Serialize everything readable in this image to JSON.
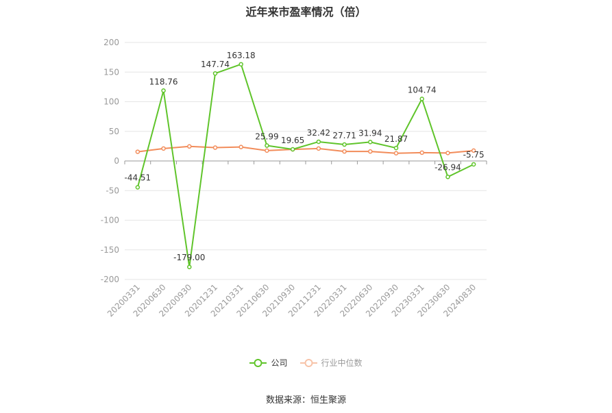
{
  "chart_data": {
    "type": "line",
    "title": "近年来市盈率情况（倍）",
    "categories": [
      "20200331",
      "20200630",
      "20200930",
      "20201231",
      "20210331",
      "20210630",
      "20210930",
      "20211231",
      "20220331",
      "20220630",
      "20220930",
      "20230331",
      "20230630",
      "20240830"
    ],
    "series": [
      {
        "name": "公司",
        "color": "#5fc42a",
        "values": [
          -44.51,
          118.76,
          -179.0,
          147.74,
          163.18,
          25.99,
          19.65,
          32.42,
          27.71,
          31.94,
          21.87,
          104.74,
          -26.94,
          -5.75
        ],
        "labels": [
          "-44.51",
          "118.76",
          "-179.00",
          "147.74",
          "163.18",
          "25.99",
          "19.65",
          "32.42",
          "27.71",
          "31.94",
          "21.87",
          "104.74",
          "-26.94",
          "-5.75"
        ]
      },
      {
        "name": "行业中位数",
        "color": "#f28c5a",
        "values": [
          15.5,
          21,
          24.5,
          22.5,
          23.5,
          17.5,
          19.5,
          21,
          16,
          16,
          13,
          14,
          13.5,
          17.5
        ]
      }
    ],
    "yticks": [
      "200",
      "150",
      "100",
      "50",
      "0",
      "-50",
      "-100",
      "-150",
      "-200"
    ],
    "ylim": [
      -200,
      200
    ],
    "grid": true,
    "legend_position": "bottom",
    "source": "数据来源：恒生聚源"
  }
}
